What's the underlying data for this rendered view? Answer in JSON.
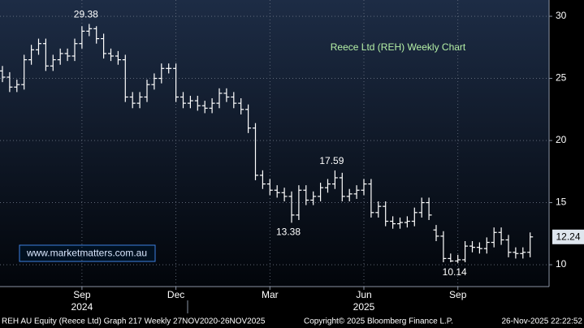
{
  "chart_data": {
    "type": "ohlc",
    "title": "Reece Ltd (REH) Weekly Chart",
    "watermark": "www.marketmatters.com.au",
    "footer": [
      "REH AU Equity (Reece Ltd) Graph 217 Weekly 27NOV2020-26NOV2025",
      "Copyright© 2025 Bloomberg Finance L.P.",
      "26-Nov-2025 22:22:52"
    ],
    "years": [
      "2024",
      "2025"
    ],
    "categories": [
      null,
      null,
      null,
      null,
      null,
      null,
      null,
      null,
      null,
      null,
      null,
      "Sep",
      null,
      null,
      null,
      null,
      null,
      null,
      null,
      null,
      null,
      null,
      null,
      null,
      "Dec",
      null,
      null,
      null,
      null,
      null,
      null,
      null,
      null,
      null,
      null,
      null,
      null,
      "Mar",
      null,
      null,
      null,
      null,
      null,
      null,
      null,
      null,
      null,
      null,
      null,
      null,
      "Jun",
      null,
      null,
      null,
      null,
      null,
      null,
      null,
      null,
      null,
      null,
      null,
      null,
      "Sep",
      null,
      null,
      null,
      null,
      null,
      null,
      null,
      null,
      null,
      null
    ],
    "open": [
      25.6,
      25.1,
      24.3,
      24.5,
      26.5,
      27.3,
      27.8,
      26.0,
      26.5,
      27.0,
      26.8,
      27.8,
      28.8,
      29.0,
      28.2,
      27.0,
      26.8,
      26.5,
      23.5,
      23.0,
      23.5,
      24.5,
      25.0,
      25.8,
      25.8,
      23.5,
      23.0,
      23.2,
      22.8,
      22.6,
      23.0,
      23.8,
      23.5,
      23.0,
      22.5,
      21.0,
      17.2,
      16.5,
      16.0,
      15.8,
      15.5,
      14.0,
      16.0,
      15.2,
      15.5,
      16.2,
      16.5,
      17.0,
      15.5,
      15.7,
      16.0,
      16.5,
      14.2,
      14.7,
      13.5,
      13.3,
      13.4,
      13.5,
      14.2,
      15.0,
      12.8,
      12.3,
      10.5,
      10.3,
      10.4,
      11.5,
      11.4,
      11.3,
      11.8,
      12.6,
      12.0,
      11.0,
      10.9,
      11.0
    ],
    "high": [
      26.0,
      25.5,
      24.9,
      26.9,
      27.7,
      28.2,
      28.2,
      26.9,
      27.4,
      27.4,
      28.2,
      29.2,
      29.38,
      29.2,
      28.6,
      27.4,
      27.2,
      26.9,
      23.9,
      23.9,
      24.9,
      25.4,
      26.2,
      26.2,
      26.2,
      23.9,
      23.6,
      23.6,
      23.2,
      23.4,
      24.2,
      24.2,
      23.9,
      23.4,
      22.9,
      21.4,
      17.6,
      16.9,
      16.4,
      16.2,
      15.9,
      16.4,
      16.4,
      15.9,
      16.6,
      16.9,
      17.59,
      17.4,
      16.1,
      16.4,
      16.9,
      16.9,
      15.1,
      15.1,
      13.9,
      13.8,
      13.9,
      14.6,
      15.4,
      15.4,
      13.2,
      12.7,
      10.9,
      10.8,
      11.9,
      11.9,
      11.8,
      12.2,
      13.0,
      13.0,
      12.4,
      11.4,
      11.4,
      12.6
    ],
    "low": [
      24.7,
      23.9,
      23.9,
      24.1,
      26.1,
      26.9,
      25.6,
      25.6,
      26.1,
      26.4,
      26.4,
      27.4,
      28.4,
      27.8,
      26.6,
      26.4,
      26.1,
      23.1,
      22.6,
      22.6,
      23.1,
      24.1,
      24.6,
      25.4,
      23.1,
      22.6,
      22.6,
      22.4,
      22.2,
      22.2,
      22.6,
      23.1,
      22.6,
      22.1,
      20.6,
      16.8,
      16.1,
      15.6,
      15.4,
      15.1,
      13.38,
      13.6,
      14.8,
      14.8,
      15.1,
      15.8,
      16.1,
      15.1,
      15.1,
      15.3,
      15.6,
      13.8,
      13.8,
      13.1,
      12.9,
      12.9,
      13.0,
      13.1,
      13.8,
      13.6,
      11.9,
      10.2,
      10.2,
      10.14,
      10.2,
      11.0,
      10.9,
      10.9,
      11.4,
      11.6,
      10.6,
      10.5,
      10.5,
      10.6
    ],
    "close": [
      25.1,
      24.3,
      24.5,
      26.5,
      27.3,
      27.8,
      26.0,
      26.5,
      27.0,
      26.8,
      27.8,
      28.8,
      29.0,
      28.2,
      27.0,
      26.8,
      26.5,
      23.5,
      23.0,
      23.5,
      24.5,
      25.0,
      25.8,
      25.8,
      23.5,
      23.0,
      23.2,
      22.8,
      22.6,
      23.0,
      23.8,
      23.5,
      23.0,
      22.5,
      21.0,
      17.2,
      16.5,
      16.0,
      15.8,
      15.5,
      14.0,
      16.0,
      15.2,
      15.5,
      16.2,
      16.5,
      17.0,
      15.5,
      15.7,
      16.0,
      16.5,
      14.2,
      14.7,
      13.5,
      13.3,
      13.4,
      13.5,
      14.2,
      15.0,
      14.0,
      12.3,
      10.5,
      10.3,
      10.4,
      11.5,
      11.4,
      11.3,
      11.8,
      12.6,
      12.0,
      11.0,
      10.9,
      11.0,
      12.24
    ],
    "annotations": [
      29.38,
      13.38,
      17.59,
      10.14
    ],
    "color": "#ffffff",
    "ylim": [
      8.24,
      31.31
    ],
    "yticks": [
      10,
      15,
      20,
      25,
      30
    ],
    "grid": true
  }
}
